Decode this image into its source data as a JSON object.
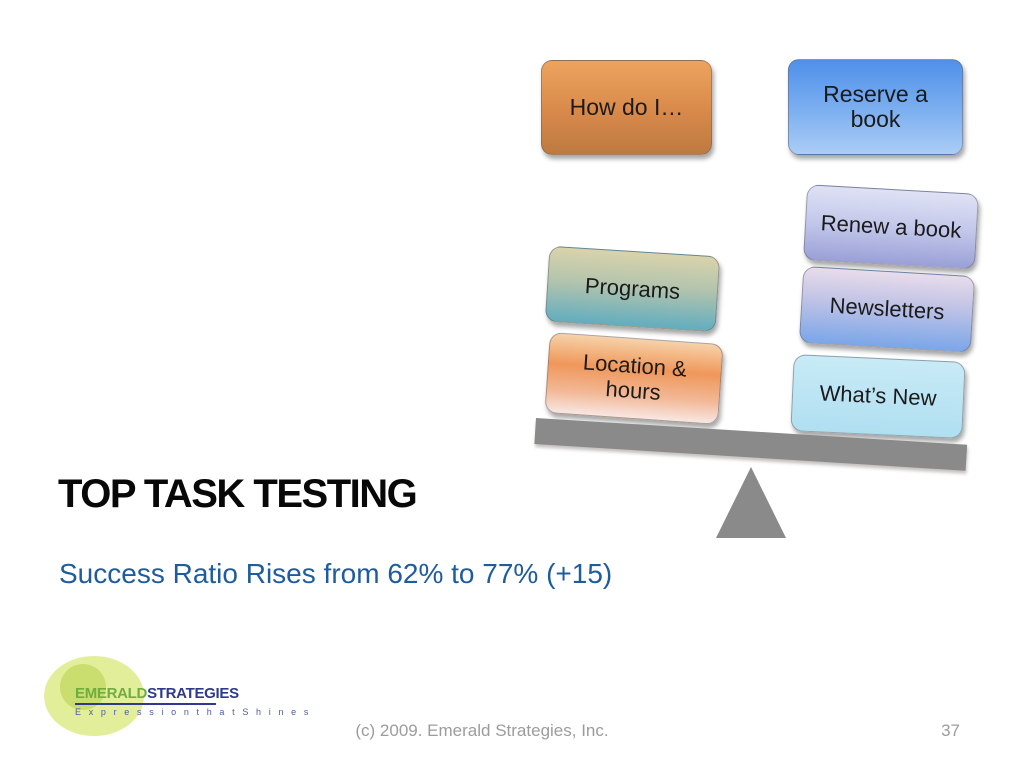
{
  "slide": {
    "title": "TOP TASK TESTING",
    "subtitle": "Success Ratio Rises from 62% to 77% (+15)",
    "footer": {
      "copyright": "(c) 2009. Emerald Strategies, Inc.",
      "page_number": "37"
    },
    "logo": {
      "brand_primary": "EMERALD",
      "brand_secondary": "STRATEGIES",
      "tagline": "E x p r e s s i o n   t h a t   S h i n e s"
    }
  },
  "diagram": {
    "type": "seesaw-balance",
    "plank_color": "#8a8a8a",
    "fulcrum_color": "#8a8a8a",
    "boxes": [
      {
        "id": "how-do-i",
        "label": "How do I…",
        "group": "floating-left",
        "gradient": [
          "#eda45e",
          "#d8894a 55%",
          "#bd7a40"
        ]
      },
      {
        "id": "reserve",
        "label": "Reserve a book",
        "group": "floating-right",
        "gradient": [
          "#4f90ea",
          "#7db0f0 55%",
          "#abcdf6"
        ]
      },
      {
        "id": "programs",
        "label": "Programs",
        "group": "left-stack",
        "gradient": [
          "#d9d3ab",
          "#b3c4ad 45%",
          "#62adbf"
        ]
      },
      {
        "id": "location",
        "label": "Location & hours",
        "group": "left-stack",
        "gradient": [
          "#f6d2a9",
          "#f0975a 38%",
          "#f2b896 72%",
          "#f8e7e3"
        ]
      },
      {
        "id": "renew",
        "label": "Renew a book",
        "group": "right-stack",
        "gradient": [
          "#dfe2f4",
          "#c2c7ea 50%",
          "#9aa0d6"
        ]
      },
      {
        "id": "newsletters",
        "label": "Newsletters",
        "group": "right-stack",
        "gradient": [
          "#e8dcea",
          "#c3c4e6 40%",
          "#7aa6e9"
        ]
      },
      {
        "id": "whats-new",
        "label": "What’s New",
        "group": "right-stack",
        "gradient": [
          "#c8eaf6",
          "#b0dff1"
        ]
      }
    ]
  }
}
